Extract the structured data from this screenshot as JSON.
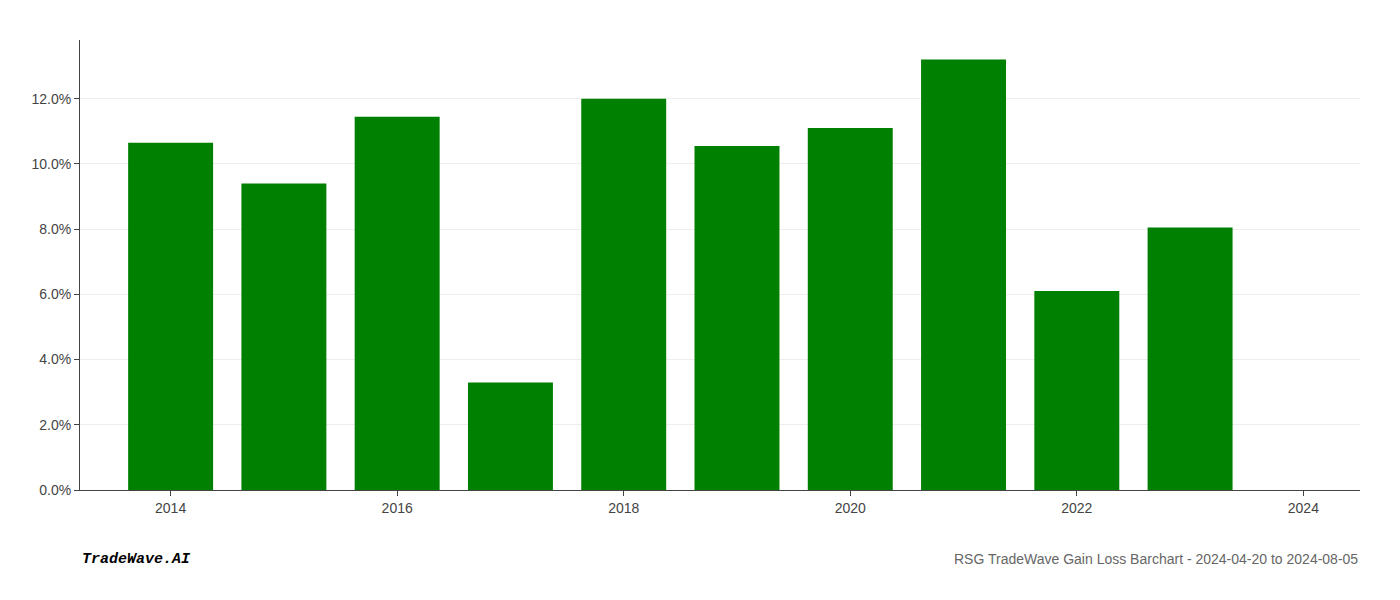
{
  "chart_data": {
    "type": "bar",
    "title": "RSG TradeWave Gain Loss Barchart - 2024-04-20 to 2024-08-05",
    "annotations": [
      "TradeWave.AI"
    ],
    "x": [
      2014,
      2015,
      2016,
      2017,
      2018,
      2019,
      2020,
      2021,
      2022,
      2023
    ],
    "values": [
      0.1065,
      0.094,
      0.1145,
      0.033,
      0.12,
      0.1055,
      0.111,
      0.132,
      0.061,
      0.0805
    ],
    "color": "#008000",
    "xlim": [
      2013.2,
      2024.5
    ],
    "xticks": [
      2014,
      2016,
      2018,
      2020,
      2022,
      2024
    ],
    "ylim": [
      0,
      0.138
    ],
    "yticks": [
      {
        "value": 0.0,
        "label": "0.0%"
      },
      {
        "value": 0.02,
        "label": "2.0%"
      },
      {
        "value": 0.04,
        "label": "4.0%"
      },
      {
        "value": 0.06,
        "label": "6.0%"
      },
      {
        "value": 0.08,
        "label": "8.0%"
      },
      {
        "value": 0.1,
        "label": "10.0%"
      },
      {
        "value": 0.12,
        "label": "12.0%"
      }
    ],
    "grid": true
  }
}
